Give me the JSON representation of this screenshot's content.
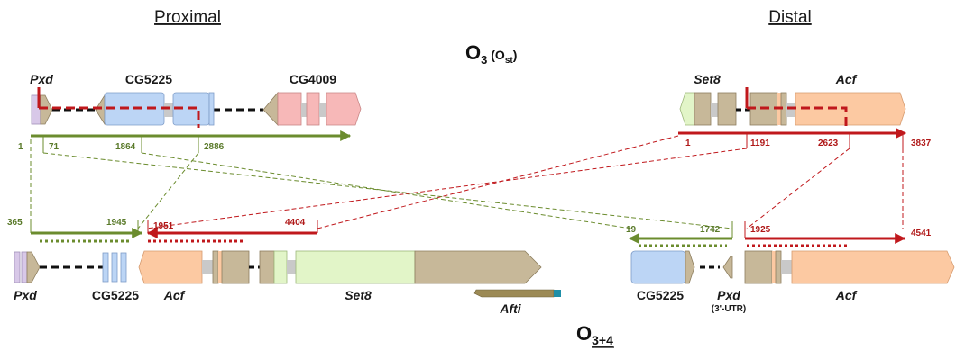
{
  "headers": {
    "proximal": "Proximal",
    "distal": "Distal"
  },
  "titles": {
    "o3_main": "O",
    "o3_sub": "3",
    "o3_paren_open": "(O",
    "o3_paren_sub": "st",
    "o3_paren_close": ")",
    "o34_main": "O",
    "o34_sub": "3+4"
  },
  "genes": {
    "pxd_top": "Pxd",
    "cg5225_top": "CG5225",
    "cg4009": "CG4009",
    "set8_top": "Set8",
    "acf_top": "Acf",
    "pxd_bottom": "Pxd",
    "cg5225_bottom": "CG5225",
    "acf_bottom": "Acf",
    "set8_bottom": "Set8",
    "afti": "Afti",
    "cg5225_bottom_right": "CG5225",
    "pxd_bottom_right": "Pxd",
    "pxd_utr": "(3'-UTR)",
    "acf_bottom_right": "Acf"
  },
  "coordinates": {
    "prox_top": [
      "1",
      "71",
      "1864",
      "2886"
    ],
    "dist_top": [
      "1",
      "1191",
      "2623",
      "3837"
    ],
    "bl_green": [
      "365",
      "1945"
    ],
    "bl_red": [
      "1951",
      "4404"
    ],
    "br_green": [
      "19",
      "1742"
    ],
    "br_red": [
      "1925",
      "4541"
    ]
  },
  "colors": {
    "green": "#6b8c2e",
    "red": "#c0181c",
    "tan": "#c7b899",
    "blue": "#bcd5f5",
    "pink": "#f7b8b8",
    "orange": "#fcc9a2",
    "lightgreen": "#e2f5c8",
    "lavender": "#d8c8e8",
    "afti": "#9c8a55",
    "teal": "#1e8fa8"
  }
}
